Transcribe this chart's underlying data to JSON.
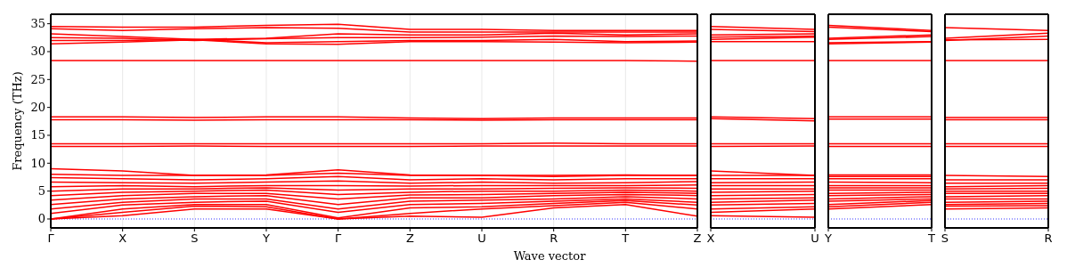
{
  "chart_data": [
    {
      "type": "line",
      "xlabel": "Wave vector",
      "ylabel": "Frequency (THz)",
      "categories": [
        "Γ",
        "X",
        "S",
        "Y",
        "Γ",
        "Z",
        "U",
        "R",
        "T",
        "Z"
      ],
      "ylim": [
        -1.6,
        36.7
      ],
      "yticks": [
        0,
        5,
        10,
        15,
        20,
        25,
        30,
        35
      ],
      "grid": "x",
      "ref_lines": [
        {
          "axis": "y",
          "value": 0,
          "color": "#0000ff",
          "line_style": "dotted"
        }
      ],
      "series": [
        {
          "color": "#ff0000",
          "values": [
            34.5,
            34.4,
            34.4,
            34.7,
            34.9,
            34.0,
            34.0,
            33.8,
            33.8,
            33.8
          ]
        },
        {
          "color": "#ff0000",
          "values": [
            34.1,
            33.8,
            34.1,
            34.3,
            34.2,
            33.5,
            33.5,
            33.5,
            33.5,
            33.5
          ]
        },
        {
          "color": "#ff0000",
          "values": [
            33.2,
            32.7,
            32.2,
            32.4,
            33.2,
            33.0,
            33.0,
            33.3,
            33.0,
            33.2
          ]
        },
        {
          "color": "#ff0000",
          "values": [
            32.5,
            32.4,
            32.0,
            32.3,
            32.5,
            32.5,
            32.6,
            32.8,
            32.7,
            32.8
          ]
        },
        {
          "color": "#ff0000",
          "values": [
            32.0,
            32.0,
            32.2,
            31.6,
            31.8,
            32.0,
            32.0,
            32.2,
            31.8,
            31.9
          ]
        },
        {
          "color": "#ff0000",
          "values": [
            31.4,
            31.7,
            32.1,
            31.4,
            31.3,
            31.8,
            31.8,
            31.7,
            31.6,
            31.7
          ]
        },
        {
          "color": "#ff0000",
          "values": [
            28.4,
            28.4,
            28.4,
            28.4,
            28.4,
            28.4,
            28.4,
            28.4,
            28.4,
            28.3
          ]
        },
        {
          "color": "#ff0000",
          "values": [
            18.3,
            18.3,
            18.2,
            18.3,
            18.3,
            18.1,
            18.0,
            18.1,
            18.1,
            18.1
          ]
        },
        {
          "color": "#ff0000",
          "values": [
            17.8,
            17.8,
            17.7,
            17.8,
            17.8,
            17.8,
            17.7,
            17.8,
            17.8,
            17.8
          ]
        },
        {
          "color": "#ff0000",
          "values": [
            13.5,
            13.5,
            13.5,
            13.5,
            13.5,
            13.5,
            13.5,
            13.6,
            13.5,
            13.5
          ]
        },
        {
          "color": "#ff0000",
          "values": [
            13.0,
            13.0,
            13.1,
            13.0,
            13.0,
            13.0,
            13.1,
            13.1,
            13.1,
            13.1
          ]
        },
        {
          "color": "#ff0000",
          "values": [
            0,
            0.6,
            1.8,
            1.8,
            0,
            0.5,
            0.3,
            2.0,
            2.6,
            0.5
          ]
        },
        {
          "color": "#ff0000",
          "values": [
            0,
            1.2,
            2.3,
            2.2,
            0,
            1.0,
            1.8,
            2.4,
            3.0,
            1.8
          ]
        },
        {
          "color": "#ff0000",
          "values": [
            0,
            1.8,
            2.6,
            2.6,
            0.2,
            2.0,
            2.2,
            2.8,
            3.3,
            2.5
          ]
        },
        {
          "color": "#ff0000",
          "values": [
            1.0,
            2.5,
            3.0,
            3.2,
            1.2,
            2.6,
            2.8,
            3.2,
            3.6,
            3.0
          ]
        },
        {
          "color": "#ff0000",
          "values": [
            1.8,
            3.0,
            3.6,
            3.6,
            1.8,
            3.2,
            3.4,
            3.6,
            4.0,
            3.6
          ]
        },
        {
          "color": "#ff0000",
          "values": [
            2.6,
            3.6,
            4.0,
            4.2,
            2.6,
            3.8,
            3.8,
            4.2,
            4.4,
            4.2
          ]
        },
        {
          "color": "#ff0000",
          "values": [
            3.4,
            4.2,
            4.6,
            4.6,
            3.6,
            4.3,
            4.4,
            4.6,
            4.8,
            4.6
          ]
        },
        {
          "color": "#ff0000",
          "values": [
            4.2,
            4.8,
            5.0,
            5.2,
            4.4,
            4.8,
            5.0,
            5.0,
            5.2,
            5.0
          ]
        },
        {
          "color": "#ff0000",
          "values": [
            5.0,
            5.4,
            5.4,
            5.6,
            5.2,
            5.4,
            5.4,
            5.5,
            5.6,
            5.5
          ]
        },
        {
          "color": "#ff0000",
          "values": [
            5.8,
            6.0,
            5.8,
            6.0,
            6.0,
            5.9,
            6.0,
            6.0,
            6.0,
            6.1
          ]
        },
        {
          "color": "#ff0000",
          "values": [
            6.6,
            6.5,
            6.4,
            6.6,
            6.8,
            6.4,
            6.6,
            6.4,
            6.5,
            6.7
          ]
        },
        {
          "color": "#ff0000",
          "values": [
            7.4,
            7.2,
            7.0,
            7.2,
            7.6,
            7.0,
            7.2,
            7.0,
            7.2,
            7.2
          ]
        },
        {
          "color": "#ff0000",
          "values": [
            8.0,
            7.8,
            7.8,
            7.8,
            8.2,
            7.8,
            7.8,
            7.6,
            7.8,
            7.8
          ]
        },
        {
          "color": "#ff0000",
          "values": [
            9.0,
            8.6,
            7.8,
            7.9,
            8.8,
            7.9,
            7.8,
            7.8,
            7.9,
            7.8
          ]
        }
      ]
    },
    {
      "type": "line",
      "tick_labels": "x",
      "categories": [
        "X",
        "U"
      ],
      "ylim": [
        -1.6,
        36.7
      ],
      "ref_lines": [
        {
          "axis": "y",
          "value": 0,
          "color": "#0000ff",
          "line_style": "dotted"
        }
      ],
      "series": [
        {
          "color": "#ff0000",
          "values": [
            34.5,
            34.0
          ]
        },
        {
          "color": "#ff0000",
          "values": [
            34.0,
            33.6
          ]
        },
        {
          "color": "#ff0000",
          "values": [
            33.0,
            33.2
          ]
        },
        {
          "color": "#ff0000",
          "values": [
            32.6,
            32.8
          ]
        },
        {
          "color": "#ff0000",
          "values": [
            32.2,
            32.6
          ]
        },
        {
          "color": "#ff0000",
          "values": [
            31.8,
            31.8
          ]
        },
        {
          "color": "#ff0000",
          "values": [
            28.4,
            28.4
          ]
        },
        {
          "color": "#ff0000",
          "values": [
            18.3,
            18.0
          ]
        },
        {
          "color": "#ff0000",
          "values": [
            18.0,
            17.6
          ]
        },
        {
          "color": "#ff0000",
          "values": [
            13.5,
            13.5
          ]
        },
        {
          "color": "#ff0000",
          "values": [
            13.0,
            13.1
          ]
        },
        {
          "color": "#ff0000",
          "values": [
            0.6,
            0.3
          ]
        },
        {
          "color": "#ff0000",
          "values": [
            1.2,
            1.8
          ]
        },
        {
          "color": "#ff0000",
          "values": [
            1.8,
            2.2
          ]
        },
        {
          "color": "#ff0000",
          "values": [
            2.5,
            2.8
          ]
        },
        {
          "color": "#ff0000",
          "values": [
            3.0,
            3.4
          ]
        },
        {
          "color": "#ff0000",
          "values": [
            3.6,
            3.8
          ]
        },
        {
          "color": "#ff0000",
          "values": [
            4.2,
            4.4
          ]
        },
        {
          "color": "#ff0000",
          "values": [
            4.8,
            5.0
          ]
        },
        {
          "color": "#ff0000",
          "values": [
            5.4,
            5.4
          ]
        },
        {
          "color": "#ff0000",
          "values": [
            6.0,
            6.0
          ]
        },
        {
          "color": "#ff0000",
          "values": [
            6.5,
            6.6
          ]
        },
        {
          "color": "#ff0000",
          "values": [
            7.2,
            7.2
          ]
        },
        {
          "color": "#ff0000",
          "values": [
            7.8,
            7.8
          ]
        },
        {
          "color": "#ff0000",
          "values": [
            8.6,
            7.8
          ]
        }
      ]
    },
    {
      "type": "line",
      "tick_labels": "x",
      "categories": [
        "Y",
        "T"
      ],
      "ylim": [
        -1.6,
        36.7
      ],
      "ref_lines": [
        {
          "axis": "y",
          "value": 0,
          "color": "#0000ff",
          "line_style": "dotted"
        }
      ],
      "series": [
        {
          "color": "#ff0000",
          "values": [
            34.7,
            33.8
          ]
        },
        {
          "color": "#ff0000",
          "values": [
            34.4,
            33.6
          ]
        },
        {
          "color": "#ff0000",
          "values": [
            32.4,
            33.0
          ]
        },
        {
          "color": "#ff0000",
          "values": [
            32.2,
            32.7
          ]
        },
        {
          "color": "#ff0000",
          "values": [
            31.6,
            31.8
          ]
        },
        {
          "color": "#ff0000",
          "values": [
            31.4,
            31.7
          ]
        },
        {
          "color": "#ff0000",
          "values": [
            28.4,
            28.4
          ]
        },
        {
          "color": "#ff0000",
          "values": [
            18.3,
            18.3
          ]
        },
        {
          "color": "#ff0000",
          "values": [
            17.9,
            17.9
          ]
        },
        {
          "color": "#ff0000",
          "values": [
            13.5,
            13.5
          ]
        },
        {
          "color": "#ff0000",
          "values": [
            13.0,
            13.0
          ]
        },
        {
          "color": "#ff0000",
          "values": [
            1.8,
            2.6
          ]
        },
        {
          "color": "#ff0000",
          "values": [
            2.2,
            3.0
          ]
        },
        {
          "color": "#ff0000",
          "values": [
            2.6,
            3.3
          ]
        },
        {
          "color": "#ff0000",
          "values": [
            3.2,
            3.6
          ]
        },
        {
          "color": "#ff0000",
          "values": [
            3.6,
            4.0
          ]
        },
        {
          "color": "#ff0000",
          "values": [
            4.2,
            4.4
          ]
        },
        {
          "color": "#ff0000",
          "values": [
            4.6,
            4.8
          ]
        },
        {
          "color": "#ff0000",
          "values": [
            5.2,
            5.2
          ]
        },
        {
          "color": "#ff0000",
          "values": [
            5.6,
            5.6
          ]
        },
        {
          "color": "#ff0000",
          "values": [
            6.0,
            6.0
          ]
        },
        {
          "color": "#ff0000",
          "values": [
            6.6,
            6.5
          ]
        },
        {
          "color": "#ff0000",
          "values": [
            7.2,
            7.2
          ]
        },
        {
          "color": "#ff0000",
          "values": [
            7.6,
            7.6
          ]
        },
        {
          "color": "#ff0000",
          "values": [
            7.9,
            7.9
          ]
        }
      ]
    },
    {
      "type": "line",
      "tick_labels": "x",
      "categories": [
        "S",
        "R"
      ],
      "ylim": [
        -1.6,
        36.7
      ],
      "ref_lines": [
        {
          "axis": "y",
          "value": 0,
          "color": "#0000ff",
          "line_style": "dotted"
        }
      ],
      "series": [
        {
          "color": "#ff0000",
          "values": [
            34.3,
            33.8
          ]
        },
        {
          "color": "#ff0000",
          "values": [
            32.4,
            33.3
          ]
        },
        {
          "color": "#ff0000",
          "values": [
            32.0,
            32.8
          ]
        },
        {
          "color": "#ff0000",
          "values": [
            32.1,
            32.2
          ]
        },
        {
          "color": "#ff0000",
          "values": [
            28.4,
            28.4
          ]
        },
        {
          "color": "#ff0000",
          "values": [
            18.2,
            18.2
          ]
        },
        {
          "color": "#ff0000",
          "values": [
            17.8,
            17.8
          ]
        },
        {
          "color": "#ff0000",
          "values": [
            13.5,
            13.5
          ]
        },
        {
          "color": "#ff0000",
          "values": [
            13.0,
            13.0
          ]
        },
        {
          "color": "#ff0000",
          "values": [
            1.8,
            2.0
          ]
        },
        {
          "color": "#ff0000",
          "values": [
            2.3,
            2.4
          ]
        },
        {
          "color": "#ff0000",
          "values": [
            2.6,
            2.8
          ]
        },
        {
          "color": "#ff0000",
          "values": [
            3.0,
            3.2
          ]
        },
        {
          "color": "#ff0000",
          "values": [
            3.6,
            3.6
          ]
        },
        {
          "color": "#ff0000",
          "values": [
            4.0,
            4.2
          ]
        },
        {
          "color": "#ff0000",
          "values": [
            4.6,
            4.6
          ]
        },
        {
          "color": "#ff0000",
          "values": [
            5.0,
            5.0
          ]
        },
        {
          "color": "#ff0000",
          "values": [
            5.4,
            5.5
          ]
        },
        {
          "color": "#ff0000",
          "values": [
            5.8,
            6.0
          ]
        },
        {
          "color": "#ff0000",
          "values": [
            6.4,
            6.4
          ]
        },
        {
          "color": "#ff0000",
          "values": [
            7.0,
            7.0
          ]
        },
        {
          "color": "#ff0000",
          "values": [
            7.8,
            7.6
          ]
        }
      ]
    }
  ]
}
